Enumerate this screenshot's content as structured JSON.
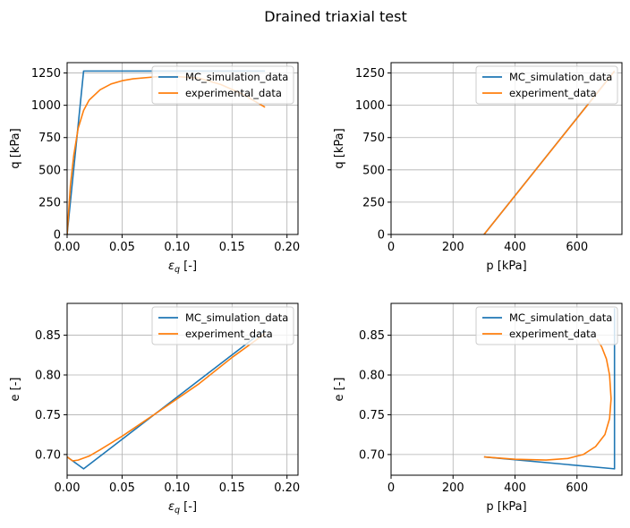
{
  "figure": {
    "title": "Drained triaxial test"
  },
  "colors": {
    "series_1": "#1f77b4",
    "series_2": "#ff7f0e",
    "grid": "#b0b0b0"
  },
  "chart_data": [
    {
      "type": "line",
      "xlabel": "εq [-]",
      "ylabel": "q [kPa]",
      "xlim": [
        0,
        0.21
      ],
      "ylim": [
        0,
        1330
      ],
      "xticks": [
        0,
        0.05,
        0.1,
        0.15,
        0.2
      ],
      "xtick_labels": [
        "0.00",
        "0.05",
        "0.10",
        "0.15",
        "0.20"
      ],
      "yticks": [
        0,
        250,
        500,
        750,
        1000,
        1250
      ],
      "ytick_labels": [
        "0",
        "250",
        "500",
        "750",
        "1000",
        "1250"
      ],
      "grid": true,
      "legend_position": "top-right",
      "series": [
        {
          "name": "MC_simulation_data",
          "color": "#1f77b4",
          "x": [
            0,
            0.015,
            0.18
          ],
          "y": [
            0,
            1265,
            1265
          ]
        },
        {
          "name": "experimental_data",
          "color": "#ff7f0e",
          "x": [
            0,
            0.003,
            0.006,
            0.01,
            0.015,
            0.02,
            0.03,
            0.04,
            0.05,
            0.06,
            0.08,
            0.1,
            0.12,
            0.14,
            0.16,
            0.18
          ],
          "y": [
            0,
            380,
            610,
            820,
            960,
            1040,
            1120,
            1165,
            1190,
            1205,
            1220,
            1222,
            1210,
            1160,
            1085,
            985
          ]
        }
      ]
    },
    {
      "type": "line",
      "xlabel": "p [kPa]",
      "ylabel": "q [kPa]",
      "xlim": [
        0,
        745
      ],
      "ylim": [
        0,
        1330
      ],
      "xticks": [
        0,
        200,
        400,
        600
      ],
      "xtick_labels": [
        "0",
        "200",
        "400",
        "600"
      ],
      "yticks": [
        0,
        250,
        500,
        750,
        1000,
        1250
      ],
      "ytick_labels": [
        "0",
        "250",
        "500",
        "750",
        "1000",
        "1250"
      ],
      "grid": true,
      "legend_position": "top-right",
      "series": [
        {
          "name": "MC_simulation_data",
          "color": "#1f77b4",
          "x": [
            300,
            721
          ],
          "y": [
            0,
            1265
          ]
        },
        {
          "name": "experiment_data",
          "color": "#ff7f0e",
          "x": [
            300,
            400,
            500,
            600,
            700,
            721
          ],
          "y": [
            0,
            300,
            600,
            900,
            1200,
            1265
          ]
        }
      ]
    },
    {
      "type": "line",
      "xlabel": "εq [-]",
      "ylabel": "e [-]",
      "xlim": [
        0,
        0.21
      ],
      "ylim": [
        0.674,
        0.89
      ],
      "xticks": [
        0,
        0.05,
        0.1,
        0.15,
        0.2
      ],
      "xtick_labels": [
        "0.00",
        "0.05",
        "0.10",
        "0.15",
        "0.20"
      ],
      "yticks": [
        0.7,
        0.75,
        0.8,
        0.85
      ],
      "ytick_labels": [
        "0.70",
        "0.75",
        "0.80",
        "0.85"
      ],
      "grid": true,
      "legend_position": "top-right",
      "series": [
        {
          "name": "MC_simulation_data",
          "color": "#1f77b4",
          "x": [
            0,
            0.015,
            0.18
          ],
          "y": [
            0.697,
            0.682,
            0.857
          ]
        },
        {
          "name": "experiment_data",
          "color": "#ff7f0e",
          "x": [
            0,
            0.005,
            0.01,
            0.02,
            0.03,
            0.05,
            0.08,
            0.1,
            0.12,
            0.15,
            0.18
          ],
          "y": [
            0.697,
            0.692,
            0.693,
            0.698,
            0.706,
            0.723,
            0.751,
            0.77,
            0.789,
            0.822,
            0.852
          ]
        }
      ]
    },
    {
      "type": "line",
      "xlabel": "p [kPa]",
      "ylabel": "e [-]",
      "xlim": [
        0,
        745
      ],
      "ylim": [
        0.674,
        0.89
      ],
      "xticks": [
        0,
        200,
        400,
        600
      ],
      "xtick_labels": [
        "0",
        "200",
        "400",
        "600"
      ],
      "yticks": [
        0.7,
        0.75,
        0.8,
        0.85
      ],
      "ytick_labels": [
        "0.70",
        "0.75",
        "0.80",
        "0.85"
      ],
      "grid": true,
      "legend_position": "top-right",
      "series": [
        {
          "name": "MC_simulation_data",
          "color": "#1f77b4",
          "x": [
            300,
            721,
            721
          ],
          "y": [
            0.697,
            0.682,
            0.884
          ]
        },
        {
          "name": "experiment_data",
          "color": "#ff7f0e",
          "x": [
            300,
            400,
            500,
            570,
            620,
            660,
            690,
            705,
            710,
            705,
            695,
            680,
            665
          ],
          "y": [
            0.697,
            0.694,
            0.693,
            0.695,
            0.7,
            0.71,
            0.725,
            0.745,
            0.77,
            0.8,
            0.82,
            0.835,
            0.845
          ]
        }
      ]
    }
  ]
}
